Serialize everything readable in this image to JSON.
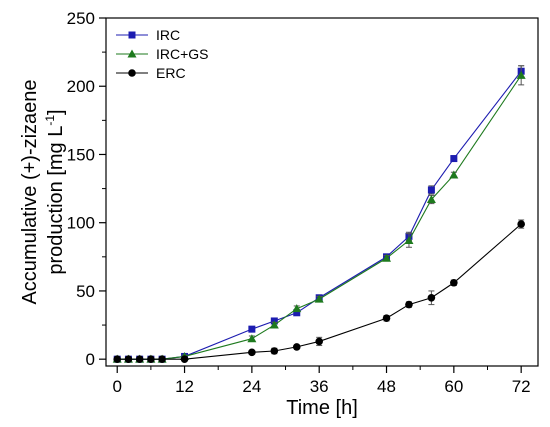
{
  "chart_data": {
    "type": "line",
    "xlabel": "Time [h]",
    "ylabel_line1": "Accumulative (+)-zizaene",
    "ylabel_line2_main": "production [mg L",
    "ylabel_line2_sup": "-1",
    "ylabel_line2_end": "]",
    "xlim": [
      -2,
      75
    ],
    "ylim": [
      -5,
      250
    ],
    "xticks": [
      0,
      12,
      24,
      36,
      48,
      60,
      72
    ],
    "yticks": [
      0,
      50,
      100,
      150,
      200,
      250
    ],
    "grid": false,
    "legend_position": "top-left",
    "series": [
      {
        "name": "IRC",
        "color": "#1c1cb0",
        "marker": "square",
        "x": [
          0,
          2,
          4,
          6,
          8,
          12,
          24,
          28,
          32,
          36,
          48,
          52,
          56,
          60,
          72
        ],
        "y": [
          0,
          0,
          0,
          0,
          0,
          2,
          22,
          28,
          34,
          45,
          75,
          90,
          124,
          147,
          211
        ],
        "err": [
          0.5,
          0.5,
          0.5,
          0.5,
          0.5,
          1,
          2,
          2,
          2,
          2,
          2,
          3,
          3,
          2,
          4
        ]
      },
      {
        "name": "IRC+GS",
        "color": "#1e7a1e",
        "marker": "triangle",
        "x": [
          0,
          2,
          4,
          6,
          8,
          12,
          24,
          28,
          32,
          36,
          48,
          52,
          56,
          60,
          72
        ],
        "y": [
          0,
          0,
          0,
          0,
          0,
          2,
          15,
          25,
          37,
          44,
          74,
          87,
          117,
          135,
          208
        ],
        "err": [
          0.5,
          0.5,
          0.5,
          0.5,
          0.5,
          1,
          2,
          2,
          2,
          2,
          2,
          5,
          3,
          2,
          7
        ]
      },
      {
        "name": "ERC",
        "color": "#000000",
        "marker": "circle",
        "x": [
          0,
          2,
          4,
          6,
          8,
          12,
          24,
          28,
          32,
          36,
          48,
          52,
          56,
          60,
          72
        ],
        "y": [
          0,
          0,
          0,
          0,
          0,
          0,
          5,
          6,
          9,
          13,
          30,
          40,
          45,
          56,
          99
        ],
        "err": [
          0.5,
          0.5,
          0.5,
          0.5,
          0.5,
          0.5,
          1,
          2,
          1,
          3,
          2,
          2,
          5,
          2,
          3
        ]
      }
    ]
  }
}
